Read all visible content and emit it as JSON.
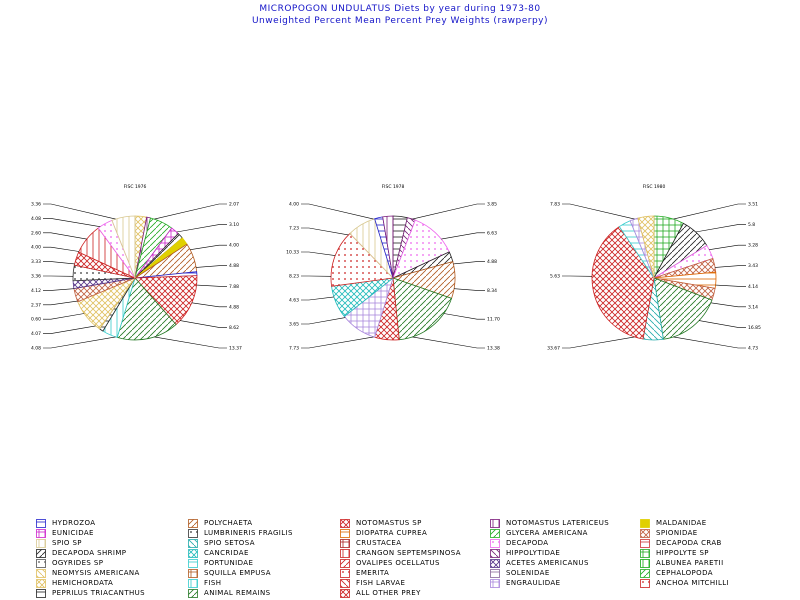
{
  "titles": {
    "line1": "MICROPOGON UNDULATUS Diets by year during 1973-80",
    "line2": "Unweighted Percent Mean Percent Prey  Weights (rawperpy)"
  },
  "prey_colors": {
    "HYDROZOA": "#2222cc",
    "POLYCHAETA": "#b05a20",
    "NOTOMASTUS SP": "#cc2222",
    "NOTOMASTUS LATERICEUS": "#7a1a7a",
    "MALDANIDAE": "#e0d000",
    "EUNICIDAE": "#cc22cc",
    "LUMBRINERIS FRAGILIS": "#333333",
    "DIOPATRA CUPREA": "#dd6600",
    "GLYCERA AMERICANA": "#22aa22",
    "SPIONIDAE": "#c06040",
    "SPIO SP": "#d8c890",
    "SPIO SETOSA": "#22aaaa",
    "CRUSTACEA": "#aa2222",
    "DECAPODA": "#ee66ee",
    "DECAPODA CRAB": "#cc3333",
    "DECAPODA SHRIMP": "#222222",
    "CANCRIDAE": "#22bbbb",
    "CRANGON SEPTEMSPINOSA": "#cc2222",
    "HIPPOLYTIDAE": "#772277",
    "HIPPOLYTE SP": "#22aa22",
    "OGYRIDES SP": "#555555",
    "PORTUNIDAE": "#33cccc",
    "OVALIPES OCELLATUS": "#cc2222",
    "ACETES AMERICANUS": "#553388",
    "ALBUNEA PARETII": "#11aa11",
    "NEOMYSIS AMERICANA": "#e0c060",
    "SQUILLA EMPUSA": "#b05a20",
    "EMERITA": "#cc2222",
    "SOLENIDAE": "#886699",
    "CEPHALOPODA": "#22aa22",
    "HEMICHORDATA": "#e0c060",
    "FISH": "#33cccc",
    "FISH LARVAE": "#cc2222",
    "ENGRAULIDAE": "#aa88dd",
    "ANCHOA MITCHILLI": "#cc2222",
    "PEPRILUS TRIACANTHUS": "#222222",
    "ANIMAL REMAINS": "#227722",
    "ALL OTHER PREY": "#cc2222"
  },
  "legend": [
    "HYDROZOA",
    "POLYCHAETA",
    "NOTOMASTUS SP",
    "NOTOMASTUS LATERICEUS",
    "MALDANIDAE",
    "EUNICIDAE",
    "LUMBRINERIS FRAGILIS",
    "DIOPATRA CUPREA",
    "GLYCERA AMERICANA",
    "SPIONIDAE",
    "SPIO SP",
    "SPIO SETOSA",
    "CRUSTACEA",
    "DECAPODA",
    "DECAPODA CRAB",
    "DECAPODA SHRIMP",
    "CANCRIDAE",
    "CRANGON SEPTEMSPINOSA",
    "HIPPOLYTIDAE",
    "HIPPOLYTE SP",
    "OGYRIDES SP",
    "PORTUNIDAE",
    "OVALIPES OCELLATUS",
    "ACETES AMERICANUS",
    "ALBUNEA PARETII",
    "NEOMYSIS AMERICANA",
    "SQUILLA EMPUSA",
    "EMERITA",
    "SOLENIDAE",
    "CEPHALOPODA",
    "HEMICHORDATA",
    "FISH",
    "FISH LARVAE",
    "ENGRAULIDAE",
    "ANCHOA MITCHILLI",
    "PEPRILUS TRIACANTHUS",
    "ANIMAL REMAINS",
    "ALL OTHER PREY"
  ],
  "chart_data": [
    {
      "type": "pie",
      "title": "FISC 1976",
      "slices": [
        {
          "label": "HEMICHORDATA",
          "value": 3.0
        },
        {
          "label": "NOTOMASTUS LATERICEUS",
          "value": 1.0
        },
        {
          "label": "GLYCERA AMERICANA",
          "value": 6.0
        },
        {
          "label": "EUNICIDAE",
          "value": 2.2
        },
        {
          "label": "DECAPODA SHRIMP",
          "value": 1.5
        },
        {
          "label": "MALDANIDAE",
          "value": 2.0
        },
        {
          "label": "POLYCHAETA",
          "value": 7.5
        },
        {
          "label": "HYDROZOA",
          "value": 1.0
        },
        {
          "label": "NOTOMASTUS SP",
          "value": 14.0
        },
        {
          "label": "ANIMAL REMAINS",
          "value": 16.0
        },
        {
          "label": "FISH",
          "value": 4.0
        },
        {
          "label": "PEPRILUS TRIACANTHUS",
          "value": 1.0
        },
        {
          "label": "HEMICHORDATA",
          "value": 9.0
        },
        {
          "label": "SPIONIDAE",
          "value": 3.5
        },
        {
          "label": "ACETES AMERICANUS",
          "value": 2.0
        },
        {
          "label": "LUMBRINERIS FRAGILIS",
          "value": 4.0
        },
        {
          "label": "ALL OTHER PREY",
          "value": 3.5
        },
        {
          "label": "CRANGON SEPTEMSPINOSA",
          "value": 8.0
        },
        {
          "label": "DECAPODA",
          "value": 4.0
        },
        {
          "label": "SPIO SP",
          "value": 6.0
        }
      ],
      "outer_labels_left": [
        "3.36",
        "4.08",
        "2.60",
        "4.00",
        "3.33",
        "3.36",
        "4.12",
        "2.37",
        "0.60",
        "4.07",
        "4.08"
      ],
      "outer_labels_right": [
        "2.07",
        "3.10",
        "4.00",
        "4.88",
        "7.88",
        "4.88",
        "8.62",
        "13.37"
      ]
    },
    {
      "type": "pie",
      "title": "FISC 1978",
      "slices": [
        {
          "label": "PEPRILUS TRIACANTHUS",
          "value": 3.5
        },
        {
          "label": "HIPPOLYTIDAE",
          "value": 2.0
        },
        {
          "label": "DECAPODA",
          "value": 11.5
        },
        {
          "label": "DECAPODA SHRIMP",
          "value": 2.5
        },
        {
          "label": "POLYCHAETA",
          "value": 9.0
        },
        {
          "label": "ANIMAL REMAINS",
          "value": 17.0
        },
        {
          "label": "ALL OTHER PREY",
          "value": 6.0
        },
        {
          "label": "ENGRAULIDAE",
          "value": 9.0
        },
        {
          "label": "CANCRIDAE",
          "value": 8.0
        },
        {
          "label": "ANCHOA MITCHILLI",
          "value": 14.0
        },
        {
          "label": "SPIO SP",
          "value": 7.0
        },
        {
          "label": "HYDROZOA",
          "value": 2.0
        },
        {
          "label": "NOTOMASTUS LATERICEUS",
          "value": 2.5
        }
      ],
      "outer_labels_left": [
        "4.00",
        "7.23",
        "10.33",
        "8.23",
        "4.63",
        "3.65",
        "7.73"
      ],
      "outer_labels_right": [
        "3.85",
        "6.63",
        "4.88",
        "8.34",
        "11.70",
        "13.38"
      ]
    },
    {
      "type": "pie",
      "title": "FISC 1980",
      "slices": [
        {
          "label": "HIPPOLYTE SP",
          "value": 7.5
        },
        {
          "label": "DECAPODA SHRIMP",
          "value": 8.0
        },
        {
          "label": "DECAPODA",
          "value": 3.5
        },
        {
          "label": "SPIONIDAE",
          "value": 3.4
        },
        {
          "label": "DIOPATRA CUPREA",
          "value": 4.0
        },
        {
          "label": "SPIONIDAE",
          "value": 3.0
        },
        {
          "label": "ANIMAL REMAINS",
          "value": 16.0
        },
        {
          "label": "SPIO SETOSA",
          "value": 5.0
        },
        {
          "label": "ALL OTHER PREY",
          "value": 36.0
        },
        {
          "label": "PORTUNIDAE",
          "value": 3.0
        },
        {
          "label": "ENGRAULIDAE",
          "value": 2.0
        },
        {
          "label": "HEMICHORDATA",
          "value": 4.0
        }
      ],
      "outer_labels_left": [
        "7.83",
        "5.63",
        "33.67"
      ],
      "outer_labels_right": [
        "3.51",
        "5.8",
        "3.28",
        "3.43",
        "4.14",
        "3.14",
        "16.85",
        "4.73"
      ]
    }
  ]
}
